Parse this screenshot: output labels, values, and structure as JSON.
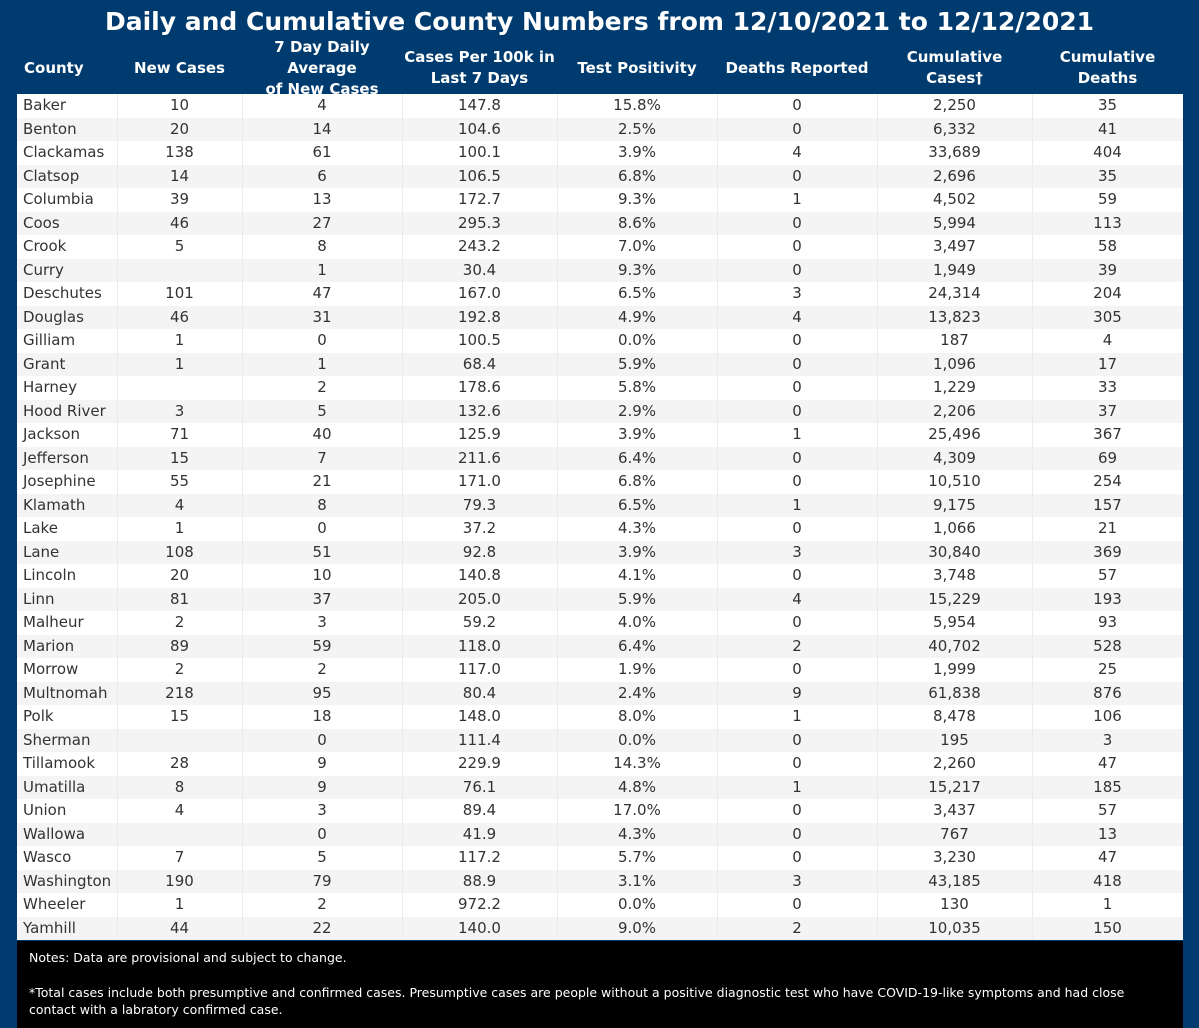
{
  "chart_data": {
    "type": "table",
    "title": "Daily and Cumulative County Numbers from 12/10/2021 to 12/12/2021",
    "columns": [
      {
        "key": "county",
        "label": "County"
      },
      {
        "key": "new_cases",
        "label": "New Cases"
      },
      {
        "key": "avg7",
        "label": "7 Day Daily Average of New Cases"
      },
      {
        "key": "per100k",
        "label": "Cases Per 100k in Last 7 Days"
      },
      {
        "key": "positivity",
        "label": "Test Positivity"
      },
      {
        "key": "deaths",
        "label": "Deaths Reported"
      },
      {
        "key": "cum_cases",
        "label": "Cumulative Cases†"
      },
      {
        "key": "cum_deaths",
        "label": "Cumulative Deaths"
      }
    ],
    "rows": [
      [
        "Baker",
        "10",
        "4",
        "147.8",
        "15.8%",
        "0",
        "2,250",
        "35"
      ],
      [
        "Benton",
        "20",
        "14",
        "104.6",
        "2.5%",
        "0",
        "6,332",
        "41"
      ],
      [
        "Clackamas",
        "138",
        "61",
        "100.1",
        "3.9%",
        "4",
        "33,689",
        "404"
      ],
      [
        "Clatsop",
        "14",
        "6",
        "106.5",
        "6.8%",
        "0",
        "2,696",
        "35"
      ],
      [
        "Columbia",
        "39",
        "13",
        "172.7",
        "9.3%",
        "1",
        "4,502",
        "59"
      ],
      [
        "Coos",
        "46",
        "27",
        "295.3",
        "8.6%",
        "0",
        "5,994",
        "113"
      ],
      [
        "Crook",
        "5",
        "8",
        "243.2",
        "7.0%",
        "0",
        "3,497",
        "58"
      ],
      [
        "Curry",
        "",
        "1",
        "30.4",
        "9.3%",
        "0",
        "1,949",
        "39"
      ],
      [
        "Deschutes",
        "101",
        "47",
        "167.0",
        "6.5%",
        "3",
        "24,314",
        "204"
      ],
      [
        "Douglas",
        "46",
        "31",
        "192.8",
        "4.9%",
        "4",
        "13,823",
        "305"
      ],
      [
        "Gilliam",
        "1",
        "0",
        "100.5",
        "0.0%",
        "0",
        "187",
        "4"
      ],
      [
        "Grant",
        "1",
        "1",
        "68.4",
        "5.9%",
        "0",
        "1,096",
        "17"
      ],
      [
        "Harney",
        "",
        "2",
        "178.6",
        "5.8%",
        "0",
        "1,229",
        "33"
      ],
      [
        "Hood River",
        "3",
        "5",
        "132.6",
        "2.9%",
        "0",
        "2,206",
        "37"
      ],
      [
        "Jackson",
        "71",
        "40",
        "125.9",
        "3.9%",
        "1",
        "25,496",
        "367"
      ],
      [
        "Jefferson",
        "15",
        "7",
        "211.6",
        "6.4%",
        "0",
        "4,309",
        "69"
      ],
      [
        "Josephine",
        "55",
        "21",
        "171.0",
        "6.8%",
        "0",
        "10,510",
        "254"
      ],
      [
        "Klamath",
        "4",
        "8",
        "79.3",
        "6.5%",
        "1",
        "9,175",
        "157"
      ],
      [
        "Lake",
        "1",
        "0",
        "37.2",
        "4.3%",
        "0",
        "1,066",
        "21"
      ],
      [
        "Lane",
        "108",
        "51",
        "92.8",
        "3.9%",
        "3",
        "30,840",
        "369"
      ],
      [
        "Lincoln",
        "20",
        "10",
        "140.8",
        "4.1%",
        "0",
        "3,748",
        "57"
      ],
      [
        "Linn",
        "81",
        "37",
        "205.0",
        "5.9%",
        "4",
        "15,229",
        "193"
      ],
      [
        "Malheur",
        "2",
        "3",
        "59.2",
        "4.0%",
        "0",
        "5,954",
        "93"
      ],
      [
        "Marion",
        "89",
        "59",
        "118.0",
        "6.4%",
        "2",
        "40,702",
        "528"
      ],
      [
        "Morrow",
        "2",
        "2",
        "117.0",
        "1.9%",
        "0",
        "1,999",
        "25"
      ],
      [
        "Multnomah",
        "218",
        "95",
        "80.4",
        "2.4%",
        "9",
        "61,838",
        "876"
      ],
      [
        "Polk",
        "15",
        "18",
        "148.0",
        "8.0%",
        "1",
        "8,478",
        "106"
      ],
      [
        "Sherman",
        "",
        "0",
        "111.4",
        "0.0%",
        "0",
        "195",
        "3"
      ],
      [
        "Tillamook",
        "28",
        "9",
        "229.9",
        "14.3%",
        "0",
        "2,260",
        "47"
      ],
      [
        "Umatilla",
        "8",
        "9",
        "76.1",
        "4.8%",
        "1",
        "15,217",
        "185"
      ],
      [
        "Union",
        "4",
        "3",
        "89.4",
        "17.0%",
        "0",
        "3,437",
        "57"
      ],
      [
        "Wallowa",
        "",
        "0",
        "41.9",
        "4.3%",
        "0",
        "767",
        "13"
      ],
      [
        "Wasco",
        "7",
        "5",
        "117.2",
        "5.7%",
        "0",
        "3,230",
        "47"
      ],
      [
        "Washington",
        "190",
        "79",
        "88.9",
        "3.1%",
        "3",
        "43,185",
        "418"
      ],
      [
        "Wheeler",
        "1",
        "2",
        "972.2",
        "0.0%",
        "0",
        "130",
        "1"
      ],
      [
        "Yamhill",
        "44",
        "22",
        "140.0",
        "9.0%",
        "2",
        "10,035",
        "150"
      ]
    ]
  },
  "header_lines": {
    "county": [
      "County"
    ],
    "new_cases": [
      "New Cases"
    ],
    "avg7": [
      "7 Day Daily Average",
      "of New Cases"
    ],
    "per100k": [
      "Cases Per 100k in",
      "Last 7 Days"
    ],
    "positivity": [
      "Test Positivity"
    ],
    "deaths": [
      "Deaths Reported"
    ],
    "cum_cases": [
      "Cumulative",
      "Cases†"
    ],
    "cum_deaths": [
      "Cumulative",
      "Deaths"
    ]
  },
  "notes": {
    "line1": "Notes:  Data are provisional and subject to change.",
    "line2": "*Total cases include both presumptive and confirmed cases. Presumptive cases are people without a positive diagnostic test who have COVID-19-like symptoms and had close contact with a labratory confirmed case."
  },
  "colors": {
    "background": "#003b6f",
    "header_text": "#ffffff",
    "row_alt": "#f4f4f4",
    "notes_background": "#000000"
  }
}
